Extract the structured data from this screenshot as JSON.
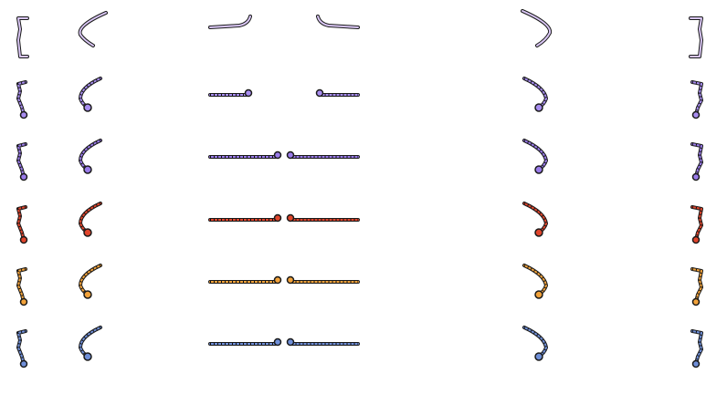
{
  "sprite_sheet": {
    "palettes": [
      {
        "name": "outline-lilac",
        "color": "#d9c6f4",
        "style": "outline"
      },
      {
        "name": "lavender",
        "color": "#a88df0",
        "style": "beaded"
      },
      {
        "name": "violet",
        "color": "#9a7bea",
        "style": "beaded"
      },
      {
        "name": "red",
        "color": "#e0452c",
        "style": "beaded"
      },
      {
        "name": "orange",
        "color": "#f2a23a",
        "style": "beaded"
      },
      {
        "name": "blue",
        "color": "#6f8fd8",
        "style": "beaded"
      }
    ],
    "pieces": [
      "left-bracket",
      "left-arc",
      "left-horizontal",
      "right-horizontal",
      "right-arc",
      "right-bracket"
    ]
  }
}
